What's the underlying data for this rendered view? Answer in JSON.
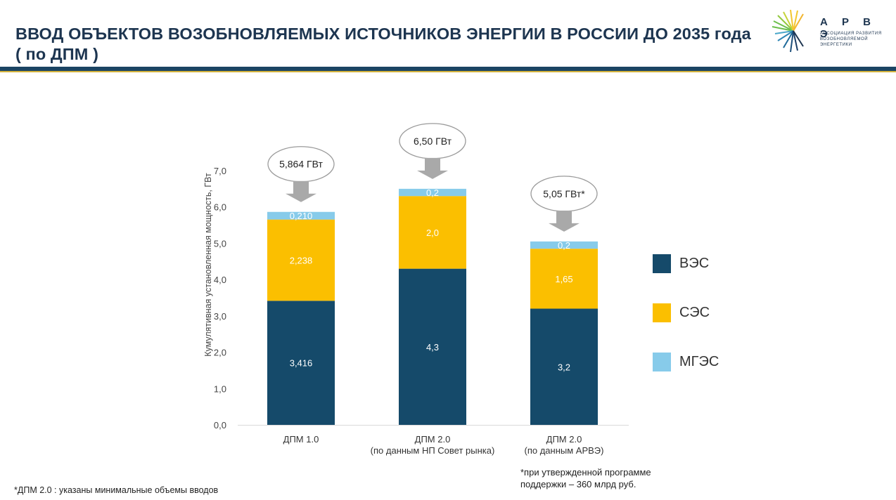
{
  "page": {
    "title_line1": "ВВОД ОБЪЕКТОВ ВОЗОБНОВЛЯЕМЫХ ИСТОЧНИКОВ ЭНЕРГИИ В РОССИИ ДО 2035 года",
    "title_line2": "( по ДПМ )",
    "logo_name": "А Р В Э",
    "logo_sub_line1": "Ассоциация развития",
    "logo_sub_line2": "возобновляемой энергетики",
    "footnote_right_line1": "*при утвержденной программе",
    "footnote_right_line2": "поддержки – 360 млрд руб.",
    "footnote_left": "*ДПМ 2.0 : указаны минимальные объемы вводов"
  },
  "colors": {
    "vez": "#154a6a",
    "ses": "#fbbf00",
    "mges": "#87cbea",
    "title": "#1d3550",
    "callout_arrow": "#a9a9a9"
  },
  "chart_data": {
    "type": "bar",
    "stacked": true,
    "ylabel": "Кумулятивная установленная мощность, ГВт",
    "ylim": [
      0,
      7
    ],
    "yticks": [
      "0,0",
      "1,0",
      "2,0",
      "3,0",
      "4,0",
      "5,0",
      "6,0",
      "7,0"
    ],
    "categories": [
      [
        "ДПМ 1.0"
      ],
      [
        "ДПМ 2.0",
        "(по данным НП Совет рынка)"
      ],
      [
        "ДПМ 2.0",
        "(по данным АРВЭ)"
      ]
    ],
    "series": [
      {
        "name": "ВЭС",
        "values": [
          3.416,
          4.3,
          3.2
        ],
        "labels": [
          "3,416",
          "4,3",
          "3,2"
        ]
      },
      {
        "name": "СЭС",
        "values": [
          2.238,
          2.0,
          1.65
        ],
        "labels": [
          "2,238",
          "2,0",
          "1,65"
        ]
      },
      {
        "name": "МГЭС",
        "values": [
          0.21,
          0.2,
          0.2
        ],
        "labels": [
          "0,210",
          "0,2",
          "0,2"
        ]
      }
    ],
    "totals": [
      "5,864 ГВт",
      "6,50 ГВт",
      "5,05 ГВт*"
    ],
    "legend_position": "right",
    "grid": false
  }
}
